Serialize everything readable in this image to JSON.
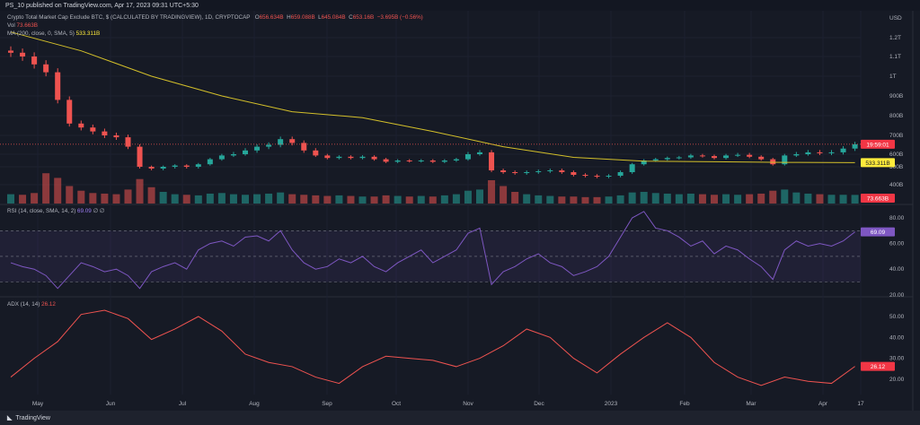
{
  "header": {
    "published": "PS_10 published on TradingView.com, Apr 17, 2023 09:31 UTC+5:30"
  },
  "legend": {
    "symbol": "Crypto Total Market Cap Exclude BTC, $ (CALCULATED BY TRADINGVIEW), 1D, CRYPTOCAP",
    "open_label": "O",
    "open": "656.634B",
    "high_label": "H",
    "high": "659.088B",
    "low_label": "L",
    "low": "645.084B",
    "close_label": "C",
    "close": "653.16B",
    "change": "−3.695B (−0.56%)",
    "vol_label": "Vol",
    "vol": "73.663B",
    "ma_label": "MA (200, close, 0, SMA, 5)",
    "ma": "533.311B",
    "rsi_label": "RSI (14, close, SMA, 14, 2)",
    "rsi": "69.09",
    "rsi_extra": "∅ ∅",
    "adx_label": "ADX (14, 14)",
    "adx": "26.12"
  },
  "badges": {
    "countdown": "19:59:01",
    "ma": "533.311B",
    "vol": "73.663B",
    "rsi": "69.09",
    "adx": "26.12"
  },
  "footer": {
    "brand": "TradingView"
  },
  "colors": {
    "up": "#26a69a",
    "down": "#ef5350",
    "ma": "#d4c02a",
    "rsi": "#7e57c2",
    "adx": "#ef5350",
    "background": "#161a25"
  },
  "chart_data": [
    {
      "type": "candlestick",
      "title": "Crypto Total Market Cap Exclude BTC",
      "currency_label": "USD",
      "y_scale": "log",
      "y_ticks": [
        "1.2T",
        "1.1T",
        "1T",
        "900B",
        "800B",
        "700B",
        "600B",
        "500B",
        "400B"
      ],
      "x_ticks": [
        "May",
        "Jun",
        "Jul",
        "Aug",
        "Sep",
        "Oct",
        "Nov",
        "Dec",
        "2023",
        "Feb",
        "Mar",
        "Apr",
        "17"
      ],
      "x_days_step": 5,
      "close_B": [
        1120,
        1100,
        1060,
        1020,
        880,
        760,
        740,
        720,
        700,
        690,
        640,
        500,
        490,
        500,
        510,
        500,
        520,
        560,
        590,
        600,
        620,
        640,
        650,
        680,
        660,
        620,
        590,
        570,
        580,
        570,
        580,
        560,
        540,
        550,
        545,
        550,
        540,
        550,
        560,
        600,
        610,
        480,
        470,
        465,
        470,
        475,
        480,
        470,
        455,
        450,
        445,
        450,
        470,
        520,
        550,
        560,
        570,
        575,
        590,
        585,
        570,
        590,
        595,
        580,
        560,
        520,
        590,
        600,
        610,
        605,
        610,
        630,
        653
      ],
      "volume_B": [
        80,
        75,
        90,
        260,
        220,
        150,
        110,
        90,
        85,
        80,
        120,
        210,
        140,
        100,
        80,
        75,
        70,
        85,
        90,
        80,
        75,
        80,
        85,
        95,
        80,
        75,
        70,
        65,
        70,
        65,
        60,
        60,
        70,
        65,
        60,
        65,
        60,
        70,
        80,
        110,
        120,
        200,
        150,
        100,
        80,
        70,
        65,
        60,
        60,
        55,
        55,
        60,
        70,
        95,
        100,
        90,
        85,
        80,
        85,
        80,
        75,
        80,
        75,
        80,
        85,
        110,
        120,
        95,
        85,
        80,
        75,
        75,
        74
      ],
      "ma200_days": [
        0,
        30,
        60,
        90,
        120,
        150,
        180,
        210,
        240,
        270,
        300,
        330,
        360
      ],
      "ma200_B": [
        1230,
        1130,
        1000,
        900,
        820,
        790,
        720,
        640,
        575,
        545,
        540,
        535,
        533
      ]
    },
    {
      "type": "line",
      "title": "RSI (14, close, SMA, 14, 2)",
      "y_ticks": [
        80,
        60,
        40,
        20
      ],
      "bands": [
        70,
        50,
        30
      ],
      "values": [
        45,
        42,
        40,
        35,
        25,
        35,
        45,
        42,
        38,
        40,
        35,
        25,
        38,
        42,
        45,
        40,
        55,
        60,
        62,
        58,
        65,
        66,
        62,
        70,
        55,
        45,
        40,
        42,
        48,
        45,
        50,
        42,
        38,
        45,
        50,
        55,
        45,
        50,
        55,
        68,
        72,
        28,
        38,
        42,
        48,
        52,
        45,
        42,
        35,
        38,
        42,
        50,
        65,
        80,
        85,
        72,
        70,
        65,
        58,
        62,
        52,
        58,
        55,
        48,
        42,
        32,
        55,
        62,
        58,
        60,
        58,
        62,
        69.09
      ]
    },
    {
      "type": "line",
      "title": "ADX (14, 14)",
      "y_ticks": [
        50,
        40,
        30,
        20
      ],
      "x_days_step": 10,
      "values": [
        21,
        30,
        38,
        51,
        53,
        49,
        39,
        44,
        50,
        43,
        32,
        28,
        26,
        21,
        18,
        26,
        31,
        30,
        29,
        26,
        30,
        36,
        44,
        40,
        30,
        23,
        32,
        40,
        47,
        40,
        28,
        21,
        17,
        21,
        19,
        18,
        26.12
      ]
    }
  ]
}
